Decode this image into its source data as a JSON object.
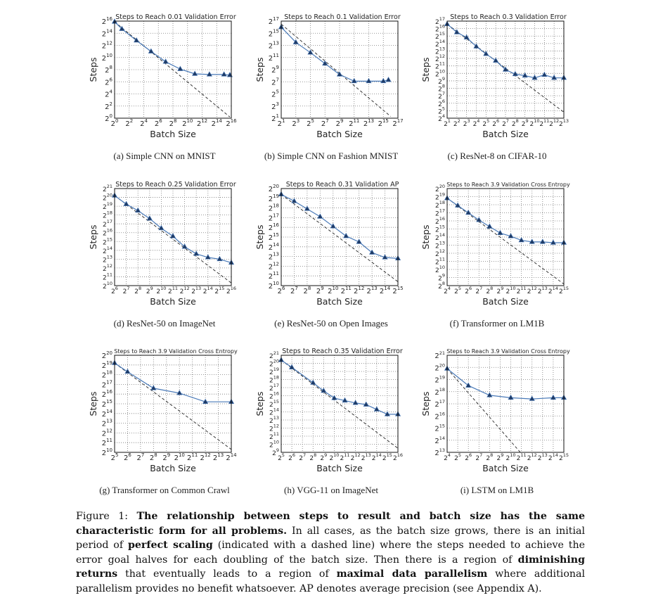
{
  "figure": {
    "caption": {
      "segments": [
        {
          "text": "Figure 1: ",
          "bold": false
        },
        {
          "text": "The relationship between steps to result and batch size has the same characteristic form for all problems.",
          "bold": true
        },
        {
          "text": " In all cases, as the batch size grows, there is an initial period of ",
          "bold": false
        },
        {
          "text": "perfect scaling",
          "bold": true
        },
        {
          "text": " (indicated with a dashed line) where the steps needed to achieve the error goal halves for each doubling of the batch size. Then there is a region of ",
          "bold": false
        },
        {
          "text": "diminishing returns",
          "bold": true
        },
        {
          "text": " that eventually leads to a region of ",
          "bold": false
        },
        {
          "text": "maximal data parallelism",
          "bold": true
        },
        {
          "text": " where additional parallelism provides no benefit whatsoever. AP denotes average precision (see Appendix A).",
          "bold": false
        }
      ]
    }
  },
  "colors": {
    "series": "#4a7ab8",
    "marker": "#1f3b66",
    "dashed": "#222222",
    "grid": "#777777"
  },
  "chart_data": [
    {
      "type": "line",
      "caption": "(a) Simple CNN on MNIST",
      "title": "Steps to Reach 0.01 Validation Error",
      "xlabel": "Batch Size",
      "ylabel": "Steps",
      "scale": "log2",
      "grid": true,
      "xlim": [
        1,
        65536
      ],
      "ylim": [
        1,
        65536
      ],
      "xticks": [
        1,
        4,
        16,
        64,
        256,
        1024,
        4096,
        16384,
        65536
      ],
      "yticks": [
        1,
        4,
        16,
        64,
        256,
        1024,
        4096,
        16384,
        65536
      ],
      "x": [
        1,
        2,
        8,
        32,
        128,
        512,
        2048,
        8192,
        32768,
        57052
      ],
      "y": [
        61147,
        26616,
        7132,
        2048,
        630,
        274,
        158,
        147,
        147,
        137
      ],
      "perfect_scaling": [
        [
          1,
          61147
        ],
        [
          57052,
          1.15
        ]
      ]
    },
    {
      "type": "line",
      "caption": "(b) Simple CNN on Fashion MNIST",
      "title": "Steps to Reach 0.1 Validation Error",
      "xlabel": "Batch Size",
      "ylabel": "Steps",
      "scale": "log2",
      "grid": true,
      "xlim": [
        2,
        131072
      ],
      "ylim": [
        2,
        131072
      ],
      "xticks": [
        2,
        8,
        32,
        128,
        512,
        2048,
        8192,
        32768,
        131072
      ],
      "yticks": [
        2,
        8,
        32,
        128,
        512,
        2048,
        8192,
        32768,
        131072
      ],
      "x": [
        2,
        8,
        32,
        128,
        512,
        2048,
        8192,
        32768,
        53232
      ],
      "y": [
        65536,
        11585,
        3566,
        1024,
        294,
        137,
        137,
        137,
        158
      ],
      "perfect_scaling": [
        [
          2,
          92682
        ],
        [
          65536,
          2.46
        ]
      ]
    },
    {
      "type": "line",
      "caption": "(c) ResNet-8 on CIFAR-10",
      "title": "Steps to Reach 0.3 Validation Error",
      "xlabel": "Batch Size",
      "ylabel": "Steps",
      "scale": "log2",
      "grid": true,
      "xlim": [
        2,
        8192
      ],
      "ylim": [
        16,
        131072
      ],
      "xticks": [
        2,
        4,
        8,
        16,
        32,
        64,
        128,
        256,
        512,
        1024,
        2048,
        4096,
        8192
      ],
      "yticks": [
        16,
        32,
        64,
        128,
        256,
        512,
        1024,
        2048,
        4096,
        8192,
        16384,
        32768,
        65536,
        131072
      ],
      "x": [
        2,
        4,
        8,
        16,
        32,
        64,
        128,
        256,
        512,
        1024,
        2048,
        4096,
        8192
      ],
      "y": [
        99334,
        46341,
        28526,
        12417,
        6208,
        3327,
        1448,
        955,
        832,
        676,
        891,
        676,
        676
      ],
      "perfect_scaling": [
        [
          2,
          99334
        ],
        [
          8192,
          27.9
        ]
      ]
    },
    {
      "type": "line",
      "caption": "(d) ResNet-50 on ImageNet",
      "title": "Steps to Reach 0.25 Validation Error",
      "xlabel": "Batch Size",
      "ylabel": "Steps",
      "scale": "log2",
      "grid": true,
      "xlim": [
        64,
        65536
      ],
      "ylim": [
        1024,
        2097152
      ],
      "xticks": [
        64,
        128,
        256,
        512,
        1024,
        2048,
        4096,
        8192,
        16384,
        32768,
        65536
      ],
      "yticks": [
        1024,
        2048,
        4096,
        8192,
        16384,
        32768,
        65536,
        131072,
        262144,
        524288,
        1048576,
        2097152
      ],
      "x": [
        64,
        128,
        256,
        512,
        1024,
        2048,
        4096,
        8192,
        16384,
        32768,
        65536
      ],
      "y": [
        1204498,
        614836,
        370728,
        198668,
        92682,
        49667,
        21619,
        12417,
        9410,
        8192,
        6208
      ],
      "perfect_scaling": [
        [
          64,
          1204498
        ],
        [
          65536,
          1261
        ]
      ]
    },
    {
      "type": "line",
      "caption": "(e) ResNet-50 on Open Images",
      "title": "Steps to Reach 0.31 Validation AP",
      "xlabel": "Batch Size",
      "ylabel": "Steps",
      "scale": "log2",
      "grid": true,
      "xlim": [
        64,
        32768
      ],
      "ylim": [
        1024,
        1048576
      ],
      "xticks": [
        64,
        128,
        256,
        512,
        1024,
        2048,
        4096,
        8192,
        16384,
        32768
      ],
      "yticks": [
        1024,
        2048,
        4096,
        8192,
        16384,
        32768,
        65536,
        131072,
        262144,
        524288,
        1048576
      ],
      "x": [
        64,
        128,
        256,
        512,
        1024,
        2048,
        4096,
        8192,
        16384,
        32768
      ],
      "y": [
        691802,
        425706,
        244589,
        140426,
        70239,
        35120,
        23170,
        10809,
        7643,
        7132
      ],
      "perfect_scaling": [
        [
          64,
          691802
        ],
        [
          32768,
          1351
        ]
      ]
    },
    {
      "type": "line",
      "caption": "(f) Transformer on LM1B",
      "title": "Steps to Reach 3.9 Validation Cross Entropy",
      "xlabel": "Batch Size",
      "ylabel": "Steps",
      "scale": "log2",
      "grid": true,
      "xlim": [
        16,
        32768
      ],
      "ylim": [
        256,
        1048576
      ],
      "xticks": [
        16,
        32,
        64,
        128,
        256,
        512,
        1024,
        2048,
        4096,
        8192,
        16384,
        32768
      ],
      "yticks": [
        256,
        512,
        1024,
        2048,
        4096,
        8192,
        16384,
        32768,
        65536,
        131072,
        262144,
        524288,
        1048576
      ],
      "x": [
        16,
        32,
        64,
        128,
        256,
        512,
        1024,
        2048,
        4096,
        8192,
        16384,
        32768
      ],
      "y": [
        456419,
        244589,
        131072,
        70239,
        40342,
        23170,
        17560,
        12417,
        10809,
        10809,
        10086,
        10086
      ],
      "perfect_scaling": [
        [
          16,
          456419
        ],
        [
          32768,
          294
        ]
      ]
    },
    {
      "type": "line",
      "caption": "(g) Transformer on Common Crawl",
      "title": "Steps to Reach 3.9 Validation Cross Entropy",
      "xlabel": "Batch Size",
      "ylabel": "Steps",
      "scale": "log2",
      "grid": true,
      "xlim": [
        32,
        16384
      ],
      "ylim": [
        1024,
        1048576
      ],
      "xticks": [
        32,
        64,
        128,
        256,
        512,
        1024,
        2048,
        4096,
        8192,
        16384
      ],
      "yticks": [
        1024,
        2048,
        4096,
        8192,
        16384,
        32768,
        65536,
        131072,
        262144,
        524288,
        1048576
      ],
      "x": [
        32,
        64,
        256,
        1024,
        4096,
        16384
      ],
      "y": [
        602249,
        322617,
        99334,
        70239,
        37641,
        37641
      ],
      "perfect_scaling": [
        [
          32,
          602249
        ],
        [
          16384,
          1261
        ]
      ]
    },
    {
      "type": "line",
      "caption": "(h) VGG-11 on ImageNet",
      "title": "Steps to Reach 0.35 Validation Error",
      "xlabel": "Batch Size",
      "ylabel": "Steps",
      "scale": "log2",
      "grid": true,
      "xlim": [
        32,
        65536
      ],
      "ylim": [
        512,
        2097152
      ],
      "xticks": [
        32,
        64,
        128,
        256,
        512,
        1024,
        2048,
        4096,
        8192,
        16384,
        32768,
        65536
      ],
      "yticks": [
        512,
        1024,
        2048,
        4096,
        8192,
        16384,
        32768,
        65536,
        131072,
        262144,
        524288,
        1048576,
        2097152
      ],
      "x": [
        32,
        64,
        256,
        512,
        1024,
        2048,
        4096,
        8192,
        16384,
        32768,
        65536
      ],
      "y": [
        1383604,
        741455,
        198668,
        99334,
        53232,
        43237,
        35120,
        30574,
        20171,
        13308,
        13308
      ],
      "perfect_scaling": [
        [
          32,
          1383604
        ],
        [
          65536,
          724
        ]
      ]
    },
    {
      "type": "line",
      "caption": "(i) LSTM on LM1B",
      "title": "Steps to Reach 3.9 Validation Cross Entropy",
      "xlabel": "Batch Size",
      "ylabel": "Steps",
      "scale": "log2",
      "grid": true,
      "xlim": [
        16,
        32768
      ],
      "ylim": [
        8192,
        2097152
      ],
      "xticks": [
        16,
        32,
        64,
        128,
        256,
        512,
        1024,
        2048,
        4096,
        8192,
        16384,
        32768
      ],
      "yticks": [
        8192,
        16384,
        32768,
        65536,
        131072,
        262144,
        524288,
        1048576,
        2097152
      ],
      "x": [
        16,
        64,
        256,
        1024,
        4096,
        16384,
        32768
      ],
      "y": [
        977343,
        370728,
        212927,
        185364,
        172950,
        185364,
        185364
      ],
      "perfect_scaling": [
        [
          16,
          977343
        ],
        [
          2048,
          7643
        ]
      ]
    }
  ]
}
